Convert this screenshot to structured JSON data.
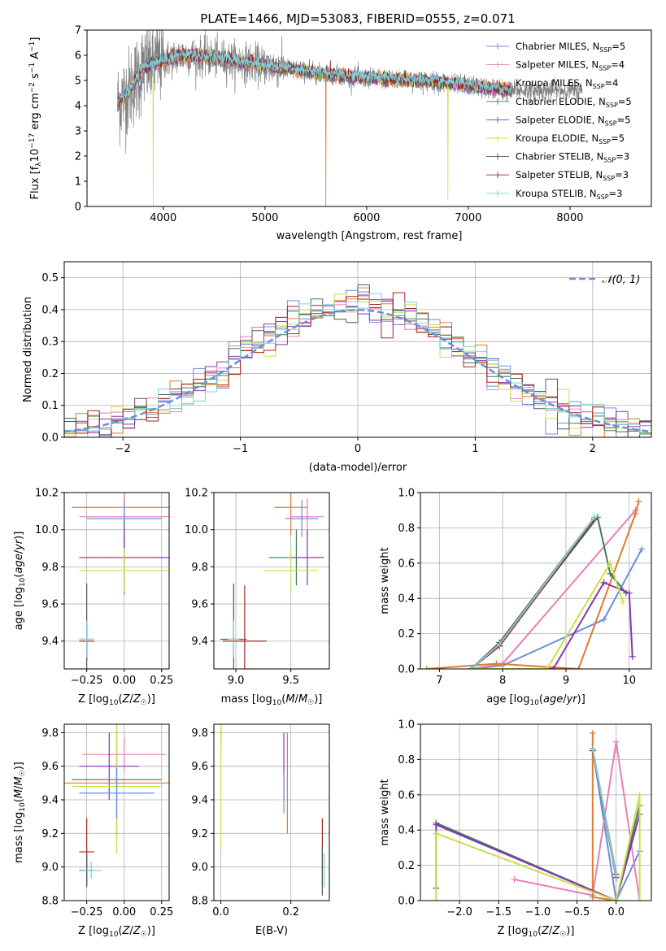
{
  "figure_title": "PLATE=1466, MJD=53083, FIBERID=0555, z=0.071",
  "colors": {
    "chabrier_miles": "#6a8fd8",
    "salpeter_miles": "#e87fb8",
    "kroupa_miles": "#e07a30",
    "chabrier_elodie": "#3f7a5a",
    "salpeter_elodie": "#8b35b0",
    "kroupa_elodie": "#c8e04a",
    "chabrier_stelib": "#555555",
    "salpeter_stelib": "#aa2020",
    "kroupa_stelib": "#7cd0dc",
    "data": "#808080",
    "gaussian": "#6a8fd8"
  },
  "chart_data": [
    {
      "id": "spectrum",
      "type": "line",
      "title": "PLATE=1466, MJD=53083, FIBERID=0555, z=0.071",
      "xlabel": "wavelength [Angstrom, rest frame]",
      "ylabel": "Flux [f_λ 10^-17 erg cm^-2 s^-1 A^-1]",
      "xlim": [
        3250,
        8800
      ],
      "ylim": [
        0,
        7
      ],
      "xticks": [
        "4000",
        "5000",
        "6000",
        "7000",
        "8000"
      ],
      "yticks": [
        "0",
        "1",
        "2",
        "3",
        "4",
        "5",
        "6",
        "7"
      ],
      "legend_position": "top-right",
      "series": [
        {
          "name": "Chabrier MILES, N_SSP=5",
          "key": "chabrier_miles"
        },
        {
          "name": "Salpeter MILES, N_SSP=4",
          "key": "salpeter_miles"
        },
        {
          "name": "Kroupa MILES, N_SSP=4",
          "key": "kroupa_miles"
        },
        {
          "name": "Chabrier ELODIE, N_SSP=5",
          "key": "chabrier_elodie"
        },
        {
          "name": "Salpeter ELODIE, N_SSP=5",
          "key": "salpeter_elodie"
        },
        {
          "name": "Kroupa ELODIE, N_SSP=5",
          "key": "kroupa_elodie"
        },
        {
          "name": "Chabrier STELIB, N_SSP=3",
          "key": "chabrier_stelib"
        },
        {
          "name": "Salpeter STELIB, N_SSP=3",
          "key": "salpeter_stelib"
        },
        {
          "name": "Kroupa STELIB, N_SSP=3",
          "key": "kroupa_stelib"
        }
      ],
      "legend_mark_labels": [
        "Chabrier MILES, N",
        "SSP",
        "=5",
        "Salpeter MILES, N",
        "SSP",
        "=4",
        "Kroupa MILES, N",
        "SSP",
        "=4",
        "Chabrier ELODIE, N",
        "SSP",
        "=5",
        "Salpeter ELODIE, N",
        "SSP",
        "=5",
        "Kroupa ELODIE, N",
        "SSP",
        "=5",
        "Chabrier STELIB, N",
        "SSP",
        "=3",
        "Salpeter STELIB, N",
        "SSP",
        "=3",
        "Kroupa STELIB, N",
        "SSP",
        "=3"
      ],
      "continuum_approx": [
        [
          3550,
          4.1
        ],
        [
          3650,
          4.5
        ],
        [
          3800,
          5.5
        ],
        [
          4000,
          5.8
        ],
        [
          4200,
          6.0
        ],
        [
          4500,
          5.9
        ],
        [
          5000,
          5.6
        ],
        [
          5500,
          5.3
        ],
        [
          6000,
          5.1
        ],
        [
          6500,
          5.0
        ],
        [
          7000,
          4.8
        ],
        [
          7400,
          4.6
        ]
      ],
      "model_range": [
        3550,
        7420
      ],
      "data_range": [
        3550,
        8120
      ],
      "absorption_features": [
        {
          "x": 3900,
          "depth_to": 0.0,
          "series": "kroupa_elodie"
        },
        {
          "x": 5600,
          "depth_to": 0.0,
          "series": "kroupa_miles"
        },
        {
          "x": 6800,
          "depth_to": 0.25,
          "series": "kroupa_elodie"
        }
      ]
    },
    {
      "id": "residuals",
      "type": "step",
      "xlabel": "(data-model)/error",
      "ylabel": "Normed distribution",
      "xlim": [
        -2.5,
        2.5
      ],
      "ylim": [
        0,
        0.55
      ],
      "xticks": [
        "−2",
        "−1",
        "0",
        "1",
        "2"
      ],
      "yticks": [
        "0.0",
        "0.1",
        "0.2",
        "0.3",
        "0.4",
        "0.5"
      ],
      "gaussian_label": "𝒩(0, 1)",
      "legend_position": "top-right",
      "bin_width": 0.1
    },
    {
      "id": "age_vs_Z",
      "type": "errorbar",
      "xlabel": "Z [log10(Z/Z☉)]",
      "ylabel": "age [log10(age/yr)]",
      "xlim": [
        -0.4,
        0.3
      ],
      "ylim": [
        9.25,
        10.2
      ],
      "xticks": [
        "−0.25",
        "0.00",
        "0.25"
      ],
      "yticks": [
        "9.4",
        "9.6",
        "9.8",
        "10.0",
        "10.2"
      ],
      "points": [
        {
          "series": "kroupa_miles",
          "x": 0.0,
          "xerr": 0.35,
          "y": 10.12,
          "yerr": 0.3
        },
        {
          "series": "salpeter_miles",
          "x": 0.0,
          "xerr": 0.3,
          "y": 10.07,
          "yerr": 0.1
        },
        {
          "series": "chabrier_miles",
          "x": 0.0,
          "xerr": 0.25,
          "y": 10.06,
          "yerr": 0.1
        },
        {
          "series": "chabrier_elodie",
          "x": 0.0,
          "xerr": 0.3,
          "y": 9.85,
          "yerr": 0.2
        },
        {
          "series": "salpeter_elodie",
          "x": 0.0,
          "xerr": 0.3,
          "y": 9.85,
          "yerr": 0.15
        },
        {
          "series": "kroupa_elodie",
          "x": 0.0,
          "xerr": 0.3,
          "y": 9.78,
          "yerr": 0.12
        },
        {
          "series": "chabrier_stelib",
          "x": -0.25,
          "xerr": 0.05,
          "y": 9.41,
          "yerr": 0.3
        },
        {
          "series": "salpeter_stelib",
          "x": -0.25,
          "xerr": 0.05,
          "y": 9.4,
          "yerr": 0.1
        },
        {
          "series": "kroupa_stelib",
          "x": -0.25,
          "xerr": 0.05,
          "y": 9.41,
          "yerr": 0.1
        }
      ]
    },
    {
      "id": "age_vs_mass",
      "type": "errorbar",
      "xlabel": "mass [log10(M/M☉)]",
      "ylabel": "",
      "xlim": [
        8.8,
        9.85
      ],
      "ylim": [
        9.25,
        10.2
      ],
      "xticks": [
        "9.0",
        "9.5"
      ],
      "yticks": [
        "9.4",
        "9.6",
        "9.8",
        "10.0",
        "10.2"
      ],
      "points": [
        {
          "series": "kroupa_miles",
          "x": 9.5,
          "xerr": 0.15,
          "y": 10.12,
          "yerr": 0.15
        },
        {
          "series": "salpeter_miles",
          "x": 9.65,
          "xerr": 0.15,
          "y": 10.07,
          "yerr": 0.1
        },
        {
          "series": "chabrier_miles",
          "x": 9.6,
          "xerr": 0.15,
          "y": 10.06,
          "yerr": 0.1
        },
        {
          "series": "chabrier_elodie",
          "x": 9.55,
          "xerr": 0.25,
          "y": 9.85,
          "yerr": 0.15
        },
        {
          "series": "salpeter_elodie",
          "x": 9.65,
          "xerr": 0.15,
          "y": 9.85,
          "yerr": 0.15
        },
        {
          "series": "kroupa_elodie",
          "x": 9.5,
          "xerr": 0.25,
          "y": 9.78,
          "yerr": 0.12
        },
        {
          "series": "chabrier_stelib",
          "x": 8.98,
          "xerr": 0.12,
          "y": 9.41,
          "yerr": 0.3
        },
        {
          "series": "salpeter_stelib",
          "x": 9.08,
          "xerr": 0.2,
          "y": 9.4,
          "yerr": 0.3
        },
        {
          "series": "kroupa_stelib",
          "x": 8.98,
          "xerr": 0.05,
          "y": 9.41,
          "yerr": 0.1
        }
      ]
    },
    {
      "id": "weight_vs_age",
      "type": "line",
      "xlabel": "age [log10(age/yr)]",
      "ylabel": "mass weight",
      "xlim": [
        6.7,
        10.35
      ],
      "ylim": [
        0,
        1.0
      ],
      "xticks": [
        "7",
        "8",
        "9",
        "10"
      ],
      "yticks": [
        "0.0",
        "0.2",
        "0.4",
        "0.6",
        "0.8",
        "1.0"
      ],
      "series": [
        {
          "key": "chabrier_miles",
          "x": [
            7.5,
            8.0,
            9.6,
            10.2
          ],
          "y": [
            0.0,
            0.02,
            0.28,
            0.68
          ]
        },
        {
          "key": "salpeter_miles",
          "x": [
            7.5,
            8.0,
            10.1
          ],
          "y": [
            0.0,
            0.03,
            0.9
          ]
        },
        {
          "key": "kroupa_miles",
          "x": [
            6.8,
            7.9,
            9.2,
            10.1,
            10.15
          ],
          "y": [
            0.0,
            0.03,
            0.0,
            0.88,
            0.95
          ]
        },
        {
          "key": "chabrier_elodie",
          "x": [
            7.5,
            7.95,
            9.5,
            9.7,
            9.95
          ],
          "y": [
            0.0,
            0.14,
            0.86,
            0.54,
            0.43
          ]
        },
        {
          "key": "salpeter_elodie",
          "x": [
            7.5,
            8.8,
            9.6,
            10.0,
            10.05
          ],
          "y": [
            0.0,
            0.0,
            0.49,
            0.43,
            0.07
          ]
        },
        {
          "key": "kroupa_elodie",
          "x": [
            7.5,
            8.7,
            9.7,
            9.9
          ],
          "y": [
            0.0,
            0.0,
            0.6,
            0.38
          ]
        },
        {
          "key": "chabrier_stelib",
          "x": [
            7.5,
            7.95,
            9.45
          ],
          "y": [
            0.0,
            0.15,
            0.86
          ]
        },
        {
          "key": "salpeter_stelib",
          "x": [
            7.5,
            7.95,
            9.45
          ],
          "y": [
            0.0,
            0.13,
            0.85
          ]
        },
        {
          "key": "kroupa_stelib",
          "x": [
            7.5,
            7.95,
            9.45
          ],
          "y": [
            0.0,
            0.14,
            0.86
          ]
        }
      ]
    },
    {
      "id": "mass_vs_Z",
      "type": "errorbar",
      "xlabel": "Z [log10(Z/Z☉)]",
      "ylabel": "mass [log10(M/M☉)]",
      "xlim": [
        -0.4,
        0.3
      ],
      "ylim": [
        8.8,
        9.85
      ],
      "xticks": [
        "−0.25",
        "0.00",
        "0.25"
      ],
      "yticks": [
        "8.8",
        "9.0",
        "9.2",
        "9.4",
        "9.6",
        "9.8"
      ],
      "points": [
        {
          "series": "salpeter_miles",
          "x": 0.0,
          "xerr": 0.28,
          "y": 9.67,
          "yerr": 0.1
        },
        {
          "series": "salpeter_elodie",
          "x": -0.1,
          "xerr": 0.2,
          "y": 9.6,
          "yerr": 0.2
        },
        {
          "series": "kroupa_miles",
          "x": -0.05,
          "xerr": 0.35,
          "y": 9.5,
          "yerr": 0.3
        },
        {
          "series": "chabrier_elodie",
          "x": -0.05,
          "xerr": 0.3,
          "y": 9.52,
          "yerr": 0.35
        },
        {
          "series": "kroupa_elodie",
          "x": -0.05,
          "xerr": 0.3,
          "y": 9.48,
          "yerr": 0.4
        },
        {
          "series": "chabrier_miles",
          "x": -0.05,
          "xerr": 0.25,
          "y": 9.44,
          "yerr": 0.15
        },
        {
          "series": "salpeter_stelib",
          "x": -0.25,
          "xerr": 0.05,
          "y": 9.09,
          "yerr": 0.2
        },
        {
          "series": "chabrier_stelib",
          "x": -0.25,
          "xerr": 0.05,
          "y": 8.98,
          "yerr": 0.1
        },
        {
          "series": "kroupa_stelib",
          "x": -0.22,
          "xerr": 0.07,
          "y": 8.98,
          "yerr": 0.05
        }
      ]
    },
    {
      "id": "mass_vs_EBV",
      "type": "errorbar",
      "xlabel": "E(B-V)",
      "ylabel": "",
      "xlim": [
        -0.02,
        0.31
      ],
      "ylim": [
        8.8,
        9.85
      ],
      "xticks": [
        "0.0",
        "0.2"
      ],
      "yticks": [
        "8.8",
        "9.0",
        "9.2",
        "9.4",
        "9.6",
        "9.8"
      ],
      "points": [
        {
          "series": "salpeter_elodie",
          "x": 0.0,
          "xerr": 0.0,
          "y": 9.78,
          "yerr": 0.05
        },
        {
          "series": "kroupa_elodie",
          "x": 0.0,
          "xerr": 0.0,
          "y": 9.5,
          "yerr": 0.4
        },
        {
          "series": "salpeter_elodie",
          "x": 0.18,
          "xerr": 0.0,
          "y": 9.6,
          "yerr": 0.2
        },
        {
          "series": "chabrier_miles",
          "x": 0.18,
          "xerr": 0.0,
          "y": 9.44,
          "yerr": 0.12
        },
        {
          "series": "kroupa_miles",
          "x": 0.19,
          "xerr": 0.0,
          "y": 9.5,
          "yerr": 0.3
        },
        {
          "series": "salpeter_stelib",
          "x": 0.29,
          "xerr": 0.0,
          "y": 9.09,
          "yerr": 0.2
        },
        {
          "series": "chabrier_stelib",
          "x": 0.29,
          "xerr": 0.0,
          "y": 8.98,
          "yerr": 0.15
        },
        {
          "series": "kroupa_stelib",
          "x": 0.295,
          "xerr": 0.0,
          "y": 8.98,
          "yerr": 0.1
        }
      ]
    },
    {
      "id": "weight_vs_Z",
      "type": "line",
      "xlabel": "Z [log10(Z/Z☉)]",
      "ylabel": "mass weight",
      "xlim": [
        -2.5,
        0.45
      ],
      "ylim": [
        0,
        1.0
      ],
      "xticks": [
        "−2.0",
        "−1.5",
        "−1.0",
        "−0.5",
        "0.0"
      ],
      "yticks": [
        "0.0",
        "0.2",
        "0.4",
        "0.6",
        "0.8",
        "1.0"
      ],
      "series": [
        {
          "key": "chabrier_miles",
          "x": [
            -0.3,
            0.0,
            0.3
          ],
          "y": [
            0.86,
            0.0,
            0.28
          ]
        },
        {
          "key": "salpeter_miles",
          "x": [
            -1.3,
            -0.3,
            0.0,
            0.3
          ],
          "y": [
            0.12,
            0.03,
            0.9,
            0.0
          ]
        },
        {
          "key": "kroupa_miles",
          "x": [
            -0.3,
            -0.3,
            0.0
          ],
          "y": [
            0.95,
            0.02,
            0.0
          ]
        },
        {
          "key": "chabrier_elodie",
          "x": [
            -2.3,
            0.0,
            0.3
          ],
          "y": [
            0.44,
            0.0,
            0.54
          ]
        },
        {
          "key": "salpeter_elodie",
          "x": [
            -2.3,
            -2.3,
            0.0,
            0.3
          ],
          "y": [
            0.07,
            0.43,
            0.0,
            0.49
          ]
        },
        {
          "key": "kroupa_elodie",
          "x": [
            -2.3,
            -2.3,
            0.0,
            0.3,
            0.3
          ],
          "y": [
            0.0,
            0.38,
            0.0,
            0.6,
            0.0
          ]
        },
        {
          "key": "chabrier_stelib",
          "x": [
            -0.3,
            0.0
          ],
          "y": [
            0.86,
            0.15
          ]
        },
        {
          "key": "salpeter_stelib",
          "x": [
            -0.3,
            0.0
          ],
          "y": [
            0.85,
            0.13
          ]
        },
        {
          "key": "kroupa_stelib",
          "x": [
            -0.3,
            0.0
          ],
          "y": [
            0.86,
            0.14
          ]
        }
      ]
    }
  ]
}
